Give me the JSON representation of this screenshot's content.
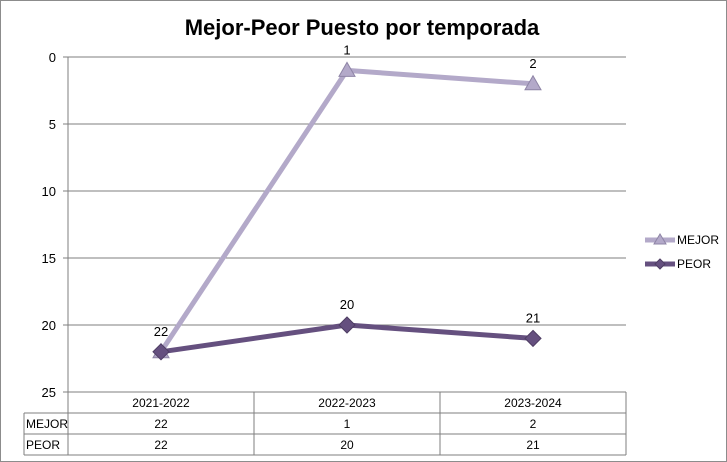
{
  "chart_data": {
    "type": "line",
    "title": "Mejor-Peor Puesto por temporada",
    "categories": [
      "2021-2022",
      "2022-2023",
      "2023-2024"
    ],
    "y_axis": {
      "reversed": true,
      "min": 0,
      "max": 25,
      "ticks": [
        0,
        5,
        10,
        15,
        20,
        25
      ]
    },
    "grid": true,
    "legend": {
      "position": "right"
    },
    "data_table": true,
    "series": [
      {
        "name": "MEJOR",
        "values": [
          22,
          1,
          2
        ],
        "color": "#b3a9c9",
        "marker": "triangle"
      },
      {
        "name": "PEOR",
        "values": [
          22,
          20,
          21
        ],
        "color": "#65507f",
        "marker": "diamond"
      }
    ]
  }
}
